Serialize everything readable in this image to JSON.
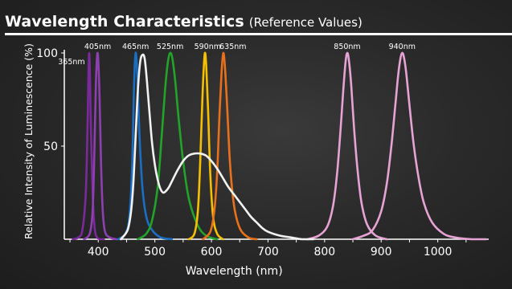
{
  "title": "Wavelength Characteristics",
  "subtitle": "(Reference Values)",
  "chart_data": {
    "type": "line",
    "xlabel": "Wavelength (nm)",
    "ylabel": "Relative Intensity of Luminescence (%)",
    "xlim": [
      340,
      1090
    ],
    "ylim": [
      0,
      100
    ],
    "xticks": [
      400,
      500,
      600,
      700,
      800,
      900,
      1000
    ],
    "yticks": [
      50,
      100
    ],
    "grid": false,
    "series": [
      {
        "name": "365nm",
        "color": "#7a2a9c",
        "x": [
          355,
          365,
          372,
          378,
          381,
          384,
          387,
          390,
          393,
          396,
          402,
          410
        ],
        "y": [
          0,
          1,
          5,
          25,
          60,
          100,
          60,
          25,
          8,
          2,
          0,
          0
        ]
      },
      {
        "name": "405nm",
        "color": "#8e3fb0",
        "x": [
          375,
          385,
          390,
          393,
          396,
          399,
          402,
          405,
          408,
          412,
          420,
          432
        ],
        "y": [
          0,
          3,
          15,
          45,
          85,
          100,
          80,
          40,
          15,
          4,
          1,
          0
        ]
      },
      {
        "name": "465nm",
        "color": "#1a6fc4",
        "x": [
          435,
          448,
          455,
          460,
          463,
          466,
          469,
          473,
          478,
          485,
          495,
          510,
          530
        ],
        "y": [
          0,
          3,
          12,
          40,
          80,
          100,
          88,
          55,
          28,
          12,
          5,
          1,
          0
        ]
      },
      {
        "name": "525nm",
        "color": "#22a32a",
        "x": [
          470,
          485,
          495,
          505,
          512,
          518,
          523,
          527,
          531,
          536,
          542,
          550,
          560,
          575,
          590,
          610
        ],
        "y": [
          0,
          3,
          10,
          28,
          55,
          80,
          95,
          100,
          97,
          85,
          65,
          42,
          22,
          8,
          2,
          0
        ]
      },
      {
        "name": "590nm",
        "color": "#f5c000",
        "x": [
          560,
          570,
          576,
          580,
          584,
          587,
          589,
          591,
          594,
          598,
          603,
          610,
          620
        ],
        "y": [
          0,
          3,
          15,
          40,
          75,
          95,
          100,
          92,
          70,
          35,
          12,
          3,
          0
        ]
      },
      {
        "name": "635nm",
        "color": "#e8711c",
        "x": [
          585,
          598,
          605,
          610,
          614,
          618,
          621,
          624,
          628,
          633,
          640,
          650,
          665,
          680
        ],
        "y": [
          0,
          4,
          15,
          35,
          65,
          90,
          100,
          92,
          70,
          40,
          18,
          6,
          1,
          0
        ]
      },
      {
        "name": "850nm",
        "color": "#e6a3d3",
        "x": [
          770,
          790,
          805,
          815,
          822,
          828,
          833,
          837,
          840,
          843,
          847,
          852,
          858,
          865,
          875,
          890,
          910
        ],
        "y": [
          0,
          2,
          7,
          18,
          35,
          58,
          80,
          95,
          100,
          96,
          83,
          60,
          38,
          20,
          8,
          2,
          0
        ]
      },
      {
        "name": "940nm",
        "color": "#e6a3d3",
        "x": [
          850,
          870,
          885,
          900,
          910,
          918,
          925,
          930,
          934,
          937,
          940,
          944,
          950,
          957,
          965,
          975,
          990,
          1010,
          1030,
          1060,
          1085
        ],
        "y": [
          0,
          2,
          5,
          15,
          30,
          50,
          72,
          88,
          97,
          100,
          98,
          90,
          72,
          52,
          35,
          20,
          9,
          3,
          1,
          0,
          0
        ]
      },
      {
        "name": "White",
        "color": "#f2f2f2",
        "x": [
          440,
          452,
          458,
          462,
          466,
          470,
          474,
          478,
          482,
          486,
          490,
          495,
          500,
          505,
          510,
          515,
          520,
          525,
          530,
          540,
          550,
          560,
          570,
          580,
          590,
          600,
          610,
          620,
          630,
          640,
          650,
          660,
          670,
          680,
          690,
          700,
          720,
          740,
          760,
          780
        ],
        "y": [
          0,
          5,
          15,
          30,
          55,
          80,
          95,
          99,
          97,
          85,
          70,
          52,
          40,
          32,
          27,
          25,
          26,
          28,
          31,
          37,
          42,
          45,
          46,
          46,
          45,
          42,
          38,
          33,
          28,
          24,
          20,
          16,
          12,
          9,
          6,
          4,
          2,
          1,
          0,
          0
        ]
      }
    ],
    "annotations": [
      "365nm",
      "405nm",
      "465nm",
      "525nm",
      "590nm",
      "635nm",
      "850nm",
      "940nm"
    ]
  }
}
